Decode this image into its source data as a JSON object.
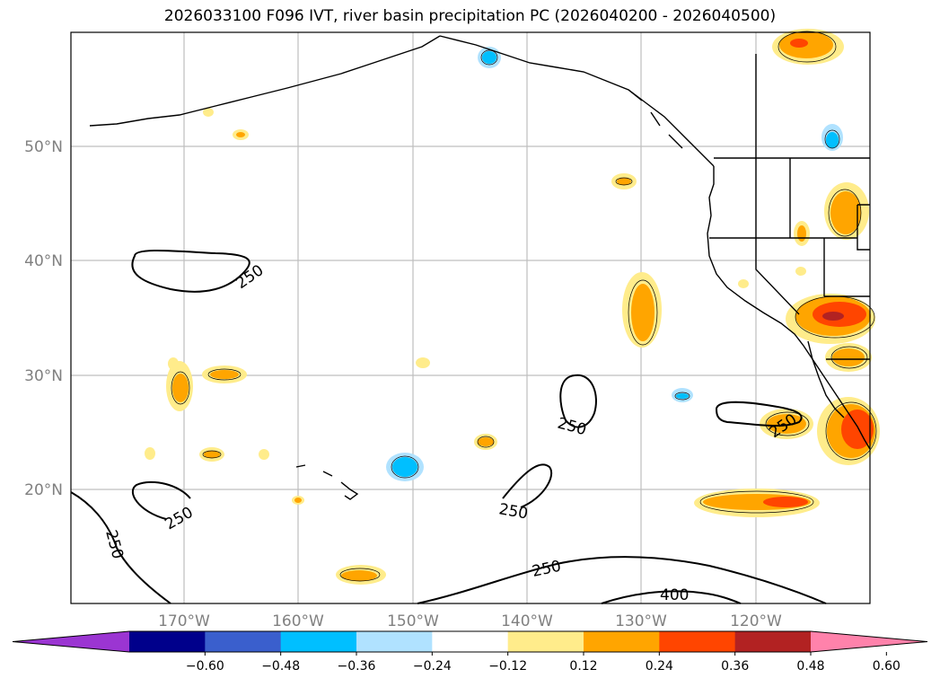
{
  "title": "2026033100 F096 IVT, river basin precipitation PC (2026040200 - 2026040500)",
  "lat_ticks": [
    {
      "label": "50°N",
      "value": 50
    },
    {
      "label": "40°N",
      "value": 40
    },
    {
      "label": "30°N",
      "value": 30
    },
    {
      "label": "20°N",
      "value": 20
    }
  ],
  "lon_ticks": [
    {
      "label": "170°W",
      "value": -170
    },
    {
      "label": "160°W",
      "value": -160
    },
    {
      "label": "150°W",
      "value": -150
    },
    {
      "label": "140°W",
      "value": -140
    },
    {
      "label": "130°W",
      "value": -130
    },
    {
      "label": "120°W",
      "value": -120
    }
  ],
  "contour_labels": [
    {
      "text": "250",
      "id": "c1"
    },
    {
      "text": "250",
      "id": "c2"
    },
    {
      "text": "250",
      "id": "c3"
    },
    {
      "text": "250",
      "id": "c4"
    },
    {
      "text": "250",
      "id": "c5"
    },
    {
      "text": "250",
      "id": "c6"
    },
    {
      "text": "250",
      "id": "c7"
    },
    {
      "text": "400",
      "id": "c8"
    }
  ],
  "colorbar": {
    "labels": [
      "−0.60",
      "−0.48",
      "−0.36",
      "−0.24",
      "−0.12",
      "0.12",
      "0.24",
      "0.36",
      "0.48",
      "0.60"
    ],
    "colors": [
      "#9b35d2",
      "#00008b",
      "#3a5fcd",
      "#00bfff",
      "#b0e2ff",
      "#ffffff",
      "#ffec8b",
      "#ffa500",
      "#ff4500",
      "#b22222",
      "#ff82ab"
    ]
  }
}
